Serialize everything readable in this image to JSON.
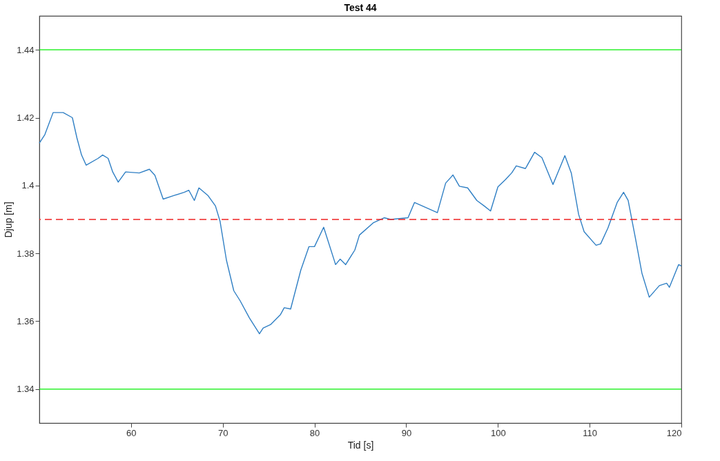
{
  "chart_data": {
    "type": "line",
    "title": "Test 44",
    "xlabel": "Tid [s]",
    "ylabel": "Djup [m]",
    "xlim": [
      50,
      120
    ],
    "ylim": [
      1.33,
      1.45
    ],
    "xticks": [
      60,
      70,
      80,
      90,
      100,
      110,
      120
    ],
    "yticks": [
      1.34,
      1.36,
      1.38,
      1.4,
      1.42,
      1.44
    ],
    "grid": false,
    "line_style": "solid",
    "ref_lines": [
      {
        "axis": "y",
        "value": 1.44,
        "color": "#00ee00",
        "line_style": "solid"
      },
      {
        "axis": "y",
        "value": 1.34,
        "color": "#00ee00",
        "line_style": "solid"
      },
      {
        "axis": "y",
        "value": 1.39,
        "color": "#ee2222",
        "line_style": "dashed"
      }
    ],
    "series": [
      {
        "color": "#2f7fc4",
        "x": [
          50,
          50.6,
          51.5,
          52.6,
          53.6,
          54.1,
          54.6,
          55.1,
          56.4,
          56.9,
          57.5,
          58.0,
          58.6,
          59.4,
          60.9,
          62.0,
          62.6,
          63.5,
          64.6,
          65.8,
          66.3,
          66.9,
          67.4,
          68.4,
          69.2,
          69.7,
          70.4,
          71.2,
          71.9,
          72.9,
          74.0,
          74.4,
          75.2,
          76.3,
          76.7,
          77.4,
          78.5,
          79.4,
          80.0,
          81.0,
          82.3,
          82.8,
          83.4,
          84.4,
          84.9,
          86.4,
          87.6,
          88.3,
          90.2,
          90.9,
          93.4,
          94.3,
          95.1,
          95.8,
          96.7,
          97.7,
          98.5,
          99.2,
          100.0,
          100.8,
          101.5,
          102.0,
          103.0,
          104.0,
          104.8,
          106.0,
          107.3,
          108.0,
          108.8,
          109.4,
          110.7,
          111.2,
          112.0,
          113.0,
          113.7,
          114.2,
          115.0,
          115.7,
          116.5,
          117.6,
          118.4,
          118.7,
          119.7,
          120.0
        ],
        "values": [
          1.4125,
          1.415,
          1.4215,
          1.4215,
          1.42,
          1.414,
          1.409,
          1.406,
          1.408,
          1.409,
          1.408,
          1.404,
          1.401,
          1.404,
          1.4037,
          1.4048,
          1.403,
          1.396,
          1.397,
          1.398,
          1.3986,
          1.3956,
          1.3993,
          1.397,
          1.394,
          1.3895,
          1.378,
          1.369,
          1.366,
          1.361,
          1.3563,
          1.358,
          1.359,
          1.362,
          1.364,
          1.3636,
          1.375,
          1.382,
          1.382,
          1.3877,
          1.3767,
          1.3783,
          1.3767,
          1.381,
          1.3854,
          1.389,
          1.3905,
          1.39,
          1.3905,
          1.395,
          1.392,
          1.4007,
          1.4031,
          1.3998,
          1.3993,
          1.3956,
          1.394,
          1.3925,
          1.3996,
          1.4017,
          1.4037,
          1.4058,
          1.405,
          1.4098,
          1.4082,
          1.4003,
          1.4088,
          1.4037,
          1.3915,
          1.3864,
          1.3824,
          1.3828,
          1.3875,
          1.395,
          1.398,
          1.3956,
          1.3844,
          1.3742,
          1.3671,
          1.3705,
          1.3712,
          1.37,
          1.3767,
          1.3763
        ]
      }
    ]
  }
}
